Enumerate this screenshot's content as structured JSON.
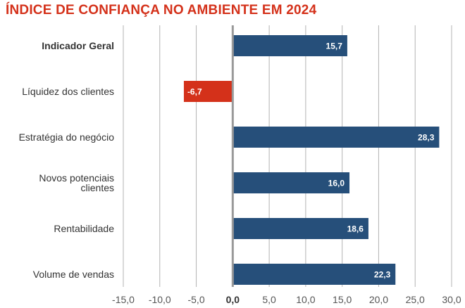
{
  "chart_data": {
    "type": "bar",
    "orientation": "horizontal",
    "title": "ÍNDICE DE CONFIANÇA NO AMBIENTE EM 2024",
    "categories": [
      [
        "Indicador Geral"
      ],
      [
        "Líquidez dos clientes"
      ],
      [
        "Estratégia do negócio"
      ],
      [
        "Novos potenciais",
        "clientes"
      ],
      [
        "Rentabilidade"
      ],
      [
        "Volume de vendas"
      ]
    ],
    "values": [
      15.7,
      -6.7,
      28.3,
      16.0,
      18.6,
      22.3
    ],
    "value_labels": [
      "15,7",
      "-6,7",
      "28,3",
      "16,0",
      "18,6",
      "22,3"
    ],
    "bold_categories": [
      0
    ],
    "xlim": [
      -15,
      30
    ],
    "xticks": [
      -15,
      -10,
      -5,
      0,
      5,
      10,
      15,
      20,
      25,
      30
    ],
    "xtick_labels": [
      "-15,0",
      "-10,0",
      "-5,0",
      "0,0",
      "5,0",
      "10,0",
      "15,0",
      "20,0",
      "25,0",
      "30,0"
    ],
    "grid": true,
    "colors": {
      "positive": "#264f7a",
      "negative": "#d4311a",
      "title": "#d4311a",
      "grid": "#b3b3b3",
      "zero_line": "#999999"
    }
  }
}
